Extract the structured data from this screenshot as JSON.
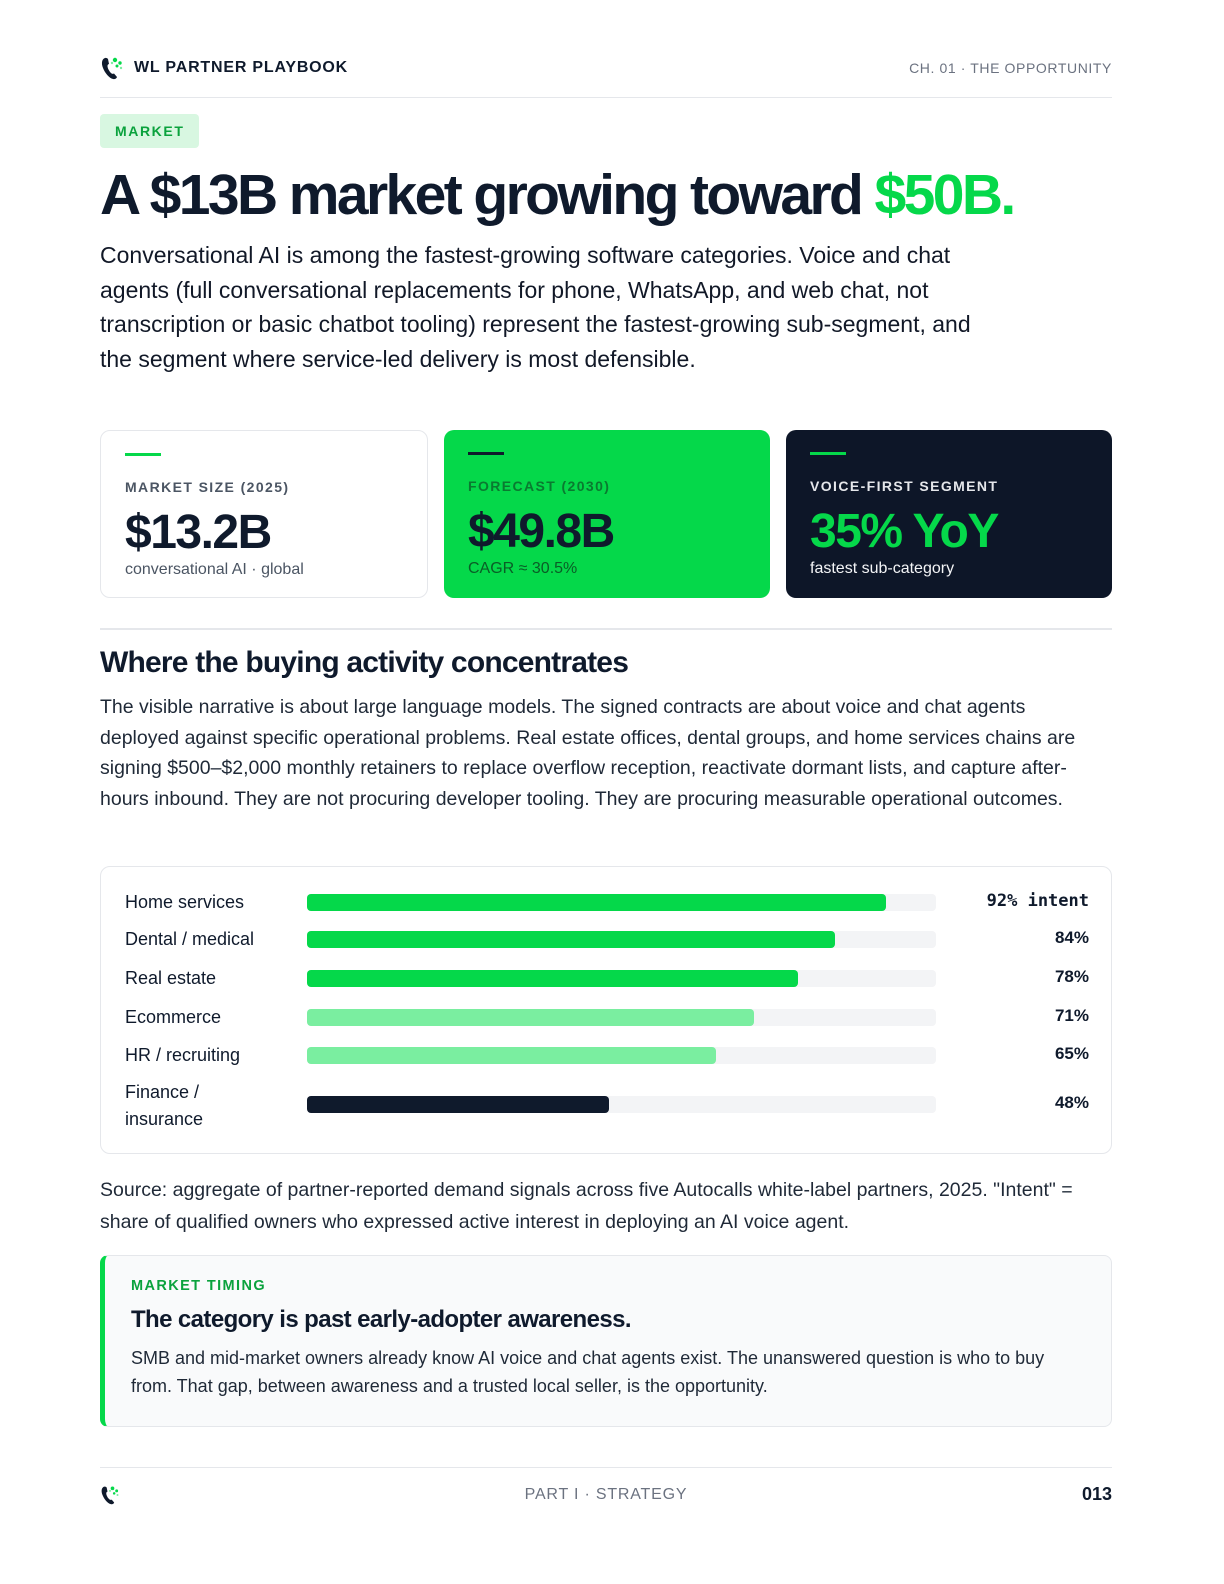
{
  "header": {
    "brand": "WL PARTNER PLAYBOOK",
    "chapter": "CH. 01 · THE OPPORTUNITY",
    "logo_icon": "phone-sparkle-icon"
  },
  "tag": "MARKET",
  "headline": {
    "main": "A $13B market growing toward ",
    "accent": "$50B."
  },
  "lead": "Conversational AI is among the fastest-growing software categories. Voice and chat agents (full conversational replacements for phone, WhatsApp, and web chat, not transcription or basic chatbot tooling) represent the fastest-growing sub-segment, and the segment where service-led delivery is most defensible.",
  "cards": [
    {
      "label": "MARKET SIZE (2025)",
      "value": "$13.2B",
      "sub": "conversational AI · global"
    },
    {
      "label": "FORECAST (2030)",
      "value": "$49.8B",
      "sub": "CAGR ≈ 30.5%"
    },
    {
      "label": "VOICE-FIRST SEGMENT",
      "value": "35% YoY",
      "sub": "fastest sub-category"
    }
  ],
  "section": {
    "title": "Where the buying activity concentrates",
    "body": "The visible narrative is about large language models. The signed contracts are about voice and chat agents deployed against specific operational problems. Real estate offices, dental groups, and home services chains are signing $500–$2,000 monthly retainers to replace overflow reception, reactivate dormant lists, and capture after-hours inbound. They are not procuring developer tooling. They are procuring measurable operational outcomes."
  },
  "chart_data": {
    "type": "bar",
    "orientation": "horizontal",
    "categories": [
      "Home services",
      "Dental / medical",
      "Real estate",
      "Ecommerce",
      "HR / recruiting",
      "Finance / insurance"
    ],
    "values": [
      92,
      84,
      78,
      71,
      65,
      48
    ],
    "value_labels": [
      "92% intent",
      "84%",
      "78%",
      "71%",
      "65%",
      "48%"
    ],
    "xlim": [
      0,
      100
    ],
    "colors": [
      "#05d84a",
      "#05d84a",
      "#05d84a",
      "#7aeea0",
      "#7aeea0",
      "#0f1a2c"
    ],
    "track_color": "#f3f4f6",
    "grid": false
  },
  "source": "Source: aggregate of partner-reported demand signals across five Autocalls white-label partners, 2025. \"Intent\" = share of qualified owners who expressed active interest in deploying an AI voice agent.",
  "callout": {
    "kicker": "MARKET TIMING",
    "title": "The category is past early-adopter awareness.",
    "body": "SMB and mid-market owners already know AI voice and chat agents exist. The unanswered question is who to buy from. That gap, between awareness and a trusted local seller, is the opportunity."
  },
  "footer": {
    "part": "PART I · STRATEGY",
    "page": "013"
  },
  "colors": {
    "accent": "#05d84a",
    "dark": "#0d1628",
    "light_accent": "#7aeea0"
  }
}
